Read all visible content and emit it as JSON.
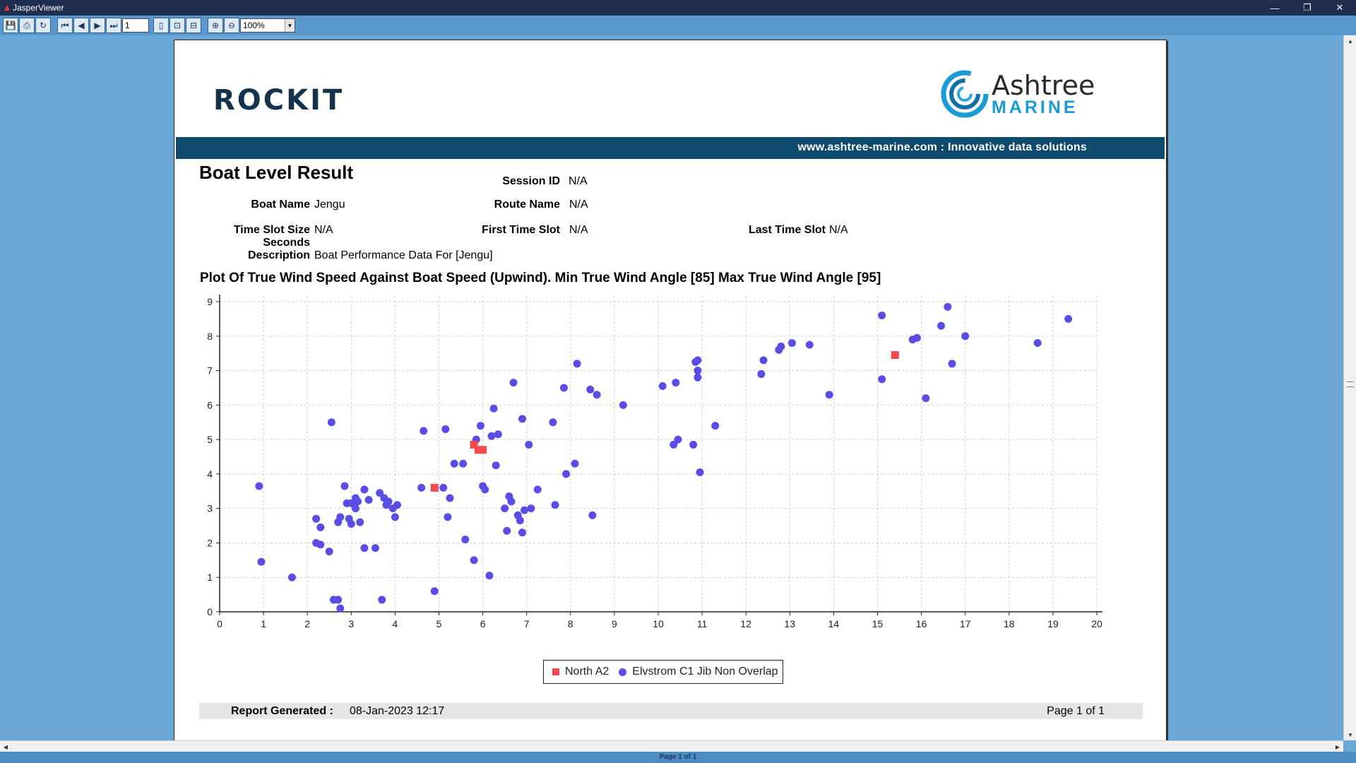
{
  "window": {
    "title": "JasperViewer",
    "controls": [
      "—",
      "❐",
      "✕"
    ]
  },
  "toolbar": {
    "page_number": "1",
    "zoom": "100%"
  },
  "statusbar": {
    "text": "Page 1 of 1"
  },
  "header": {
    "rockit_logo_text": "ROCKIT",
    "ashtree_name": "Ashtree",
    "ashtree_sub": "MARINE",
    "tagline": "www.ashtree-marine.com : Innovative data solutions"
  },
  "report": {
    "title": "Boat Level Result",
    "fields": {
      "session_id_label": "Session ID",
      "session_id": "N/A",
      "boat_name_label": "Boat Name",
      "boat_name": "Jengu",
      "route_name_label": "Route Name",
      "route_name": "N/A",
      "slot_size_label": "Time Slot Size Seconds",
      "slot_size": "N/A",
      "first_slot_label": "First Time Slot",
      "first_slot": "N/A",
      "last_slot_label": "Last Time Slot",
      "last_slot": "N/A",
      "description_label": "Description",
      "description": "Boat Performance Data For [Jengu]"
    },
    "plot_title": "Plot Of True Wind Speed Against Boat Speed (Upwind). Min True Wind Angle [85] Max True Wind Angle [95]"
  },
  "chart_data": {
    "type": "scatter",
    "title": "Plot Of True Wind Speed Against Boat Speed (Upwind). Min True Wind Angle [85] Max True Wind Angle [95]",
    "xlabel": "",
    "ylabel": "",
    "xlim": [
      0,
      20
    ],
    "ylim": [
      0,
      9
    ],
    "xticks": [
      0,
      1,
      2,
      3,
      4,
      5,
      6,
      7,
      8,
      9,
      10,
      11,
      12,
      13,
      14,
      15,
      16,
      17,
      18,
      19,
      20
    ],
    "yticks": [
      0,
      1,
      2,
      3,
      4,
      5,
      6,
      7,
      8,
      9
    ],
    "grid": true,
    "legend_position": "bottom",
    "series": [
      {
        "name": "North A2",
        "marker": "square",
        "color": "#f4494f",
        "points": [
          [
            4.9,
            3.6
          ],
          [
            5.8,
            4.85
          ],
          [
            5.9,
            4.7
          ],
          [
            6.0,
            4.7
          ],
          [
            15.4,
            7.45
          ]
        ]
      },
      {
        "name": "Elvstrom C1 Jib Non Overlap",
        "marker": "circle",
        "color": "#5a4de6",
        "points": [
          [
            0.9,
            3.65
          ],
          [
            0.95,
            1.45
          ],
          [
            1.65,
            1.0
          ],
          [
            2.2,
            2.7
          ],
          [
            2.2,
            2.0
          ],
          [
            2.3,
            1.95
          ],
          [
            2.3,
            2.45
          ],
          [
            2.5,
            1.75
          ],
          [
            2.55,
            5.5
          ],
          [
            2.6,
            0.35
          ],
          [
            2.7,
            0.35
          ],
          [
            2.7,
            2.6
          ],
          [
            2.75,
            2.75
          ],
          [
            2.75,
            0.1
          ],
          [
            2.85,
            3.65
          ],
          [
            2.9,
            3.15
          ],
          [
            2.95,
            2.7
          ],
          [
            3.0,
            2.55
          ],
          [
            3.0,
            3.15
          ],
          [
            3.1,
            3.3
          ],
          [
            3.1,
            3.0
          ],
          [
            3.15,
            3.2
          ],
          [
            3.2,
            2.6
          ],
          [
            3.3,
            1.85
          ],
          [
            3.3,
            3.55
          ],
          [
            3.4,
            3.25
          ],
          [
            3.55,
            1.85
          ],
          [
            3.65,
            3.45
          ],
          [
            3.7,
            0.35
          ],
          [
            3.75,
            3.3
          ],
          [
            3.8,
            3.1
          ],
          [
            3.85,
            3.2
          ],
          [
            3.95,
            3.0
          ],
          [
            4.0,
            2.75
          ],
          [
            4.05,
            3.1
          ],
          [
            4.6,
            3.6
          ],
          [
            4.65,
            5.25
          ],
          [
            4.9,
            0.6
          ],
          [
            5.1,
            3.6
          ],
          [
            5.15,
            5.3
          ],
          [
            5.2,
            2.75
          ],
          [
            5.25,
            3.3
          ],
          [
            5.35,
            4.3
          ],
          [
            5.55,
            4.3
          ],
          [
            5.6,
            2.1
          ],
          [
            5.8,
            1.5
          ],
          [
            5.85,
            5.0
          ],
          [
            5.95,
            5.4
          ],
          [
            6.0,
            3.65
          ],
          [
            6.05,
            3.55
          ],
          [
            6.15,
            1.05
          ],
          [
            6.2,
            5.1
          ],
          [
            6.25,
            5.9
          ],
          [
            6.3,
            4.25
          ],
          [
            6.35,
            5.15
          ],
          [
            6.5,
            3.0
          ],
          [
            6.55,
            2.35
          ],
          [
            6.6,
            3.35
          ],
          [
            6.65,
            3.2
          ],
          [
            6.7,
            6.65
          ],
          [
            6.8,
            2.8
          ],
          [
            6.85,
            2.65
          ],
          [
            6.9,
            2.3
          ],
          [
            6.9,
            5.6
          ],
          [
            6.95,
            2.95
          ],
          [
            7.05,
            4.85
          ],
          [
            7.1,
            3.0
          ],
          [
            7.25,
            3.55
          ],
          [
            7.6,
            5.5
          ],
          [
            7.65,
            3.1
          ],
          [
            7.85,
            6.5
          ],
          [
            7.9,
            4.0
          ],
          [
            8.1,
            4.3
          ],
          [
            8.15,
            7.2
          ],
          [
            8.45,
            6.45
          ],
          [
            8.5,
            2.8
          ],
          [
            8.6,
            6.3
          ],
          [
            9.2,
            6.0
          ],
          [
            10.1,
            6.55
          ],
          [
            10.35,
            4.85
          ],
          [
            10.4,
            6.65
          ],
          [
            10.45,
            5.0
          ],
          [
            10.8,
            4.85
          ],
          [
            10.85,
            7.25
          ],
          [
            10.9,
            7.3
          ],
          [
            10.9,
            7.0
          ],
          [
            10.9,
            6.8
          ],
          [
            10.95,
            4.05
          ],
          [
            11.3,
            5.4
          ],
          [
            12.35,
            6.9
          ],
          [
            12.4,
            7.3
          ],
          [
            12.75,
            7.6
          ],
          [
            12.8,
            7.7
          ],
          [
            13.05,
            7.8
          ],
          [
            13.45,
            7.75
          ],
          [
            13.9,
            6.3
          ],
          [
            15.1,
            8.6
          ],
          [
            15.1,
            6.75
          ],
          [
            15.8,
            7.9
          ],
          [
            15.9,
            7.95
          ],
          [
            16.45,
            8.3
          ],
          [
            16.6,
            8.85
          ],
          [
            16.7,
            7.2
          ],
          [
            16.1,
            6.2
          ],
          [
            17.0,
            8.0
          ],
          [
            18.65,
            7.8
          ],
          [
            19.35,
            8.5
          ]
        ]
      }
    ]
  },
  "footer": {
    "generated_label": "Report Generated :",
    "generated_value": "08-Jan-2023 12:17",
    "page_text": "Page 1 of 1"
  }
}
